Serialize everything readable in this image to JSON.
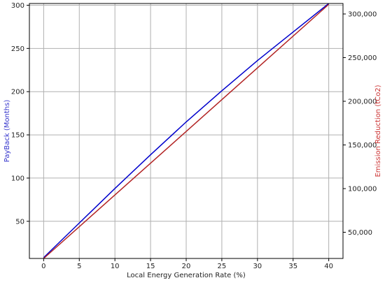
{
  "chart_data": {
    "type": "line",
    "xlabel": "Local Energy Generation Rate (%)",
    "ylabel_left": "PayBack (Months)",
    "ylabel_right": "Emission Reduction (tCo2)",
    "xlim": [
      -2,
      42
    ],
    "ylim_left": [
      7,
      302
    ],
    "ylim_right": [
      20000,
      312000
    ],
    "x_ticks": [
      0,
      5,
      10,
      15,
      20,
      25,
      30,
      35,
      40
    ],
    "y_left_ticks": [
      50,
      100,
      150,
      200,
      250,
      300
    ],
    "y_right_ticks": [
      50000,
      100000,
      150000,
      200000,
      250000,
      300000
    ],
    "y_right_tick_labels": [
      "50,000",
      "100,000",
      "150,000",
      "200,000",
      "250,000",
      "300,000"
    ],
    "grid": true,
    "series": [
      {
        "axis": "left",
        "color": "#0000cc",
        "x": [
          0,
          5,
          10,
          15,
          20,
          25,
          30,
          35,
          40
        ],
        "y": [
          8,
          48,
          88,
          127,
          165,
          201,
          236,
          269,
          302
        ]
      },
      {
        "axis": "right",
        "color": "#b22222",
        "x": [
          0,
          40
        ],
        "y": [
          20000,
          311000
        ]
      }
    ],
    "colors": {
      "left_axis_title": "#3333cc",
      "right_axis_title": "#cc3333",
      "grid": "#b0b0b0",
      "spine": "#000000"
    }
  }
}
